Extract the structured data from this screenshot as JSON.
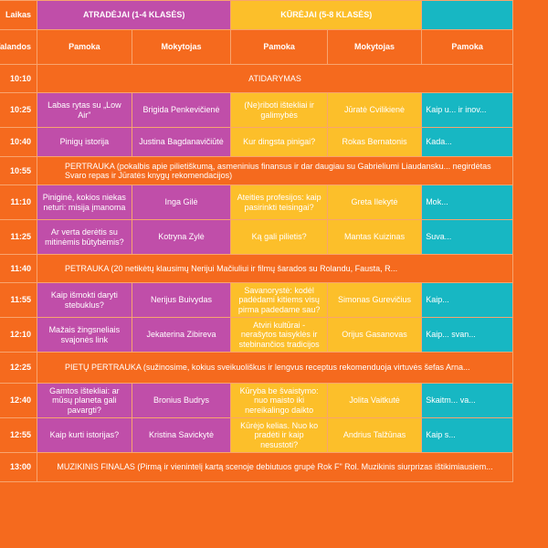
{
  "header": {
    "col0_top": "Laikas",
    "col0_sub": "Valandos",
    "group1": "ATRADĖJAI (1-4 KLASĖS)",
    "group2": "KŪRĖJAI (5-8 KLASĖS)",
    "group3": "",
    "pamoka": "Pamoka",
    "mokytojas": "Mokytojas"
  },
  "rows": [
    {
      "time": "10:10",
      "type": "break_center",
      "text": "ATIDARYMAS"
    },
    {
      "time": "10:25",
      "type": "lesson",
      "a_lesson": "Labas rytas su „Low Air\"",
      "a_teacher": "Brigida Penkevičienė",
      "k_lesson": "(Ne)riboti ištekliai ir galimybės",
      "k_teacher": "Jūratė Cvilikienė",
      "t_lesson": "Kaip u... ir inov..."
    },
    {
      "time": "10:40",
      "type": "lesson",
      "a_lesson": "Pinigų istorija",
      "a_teacher": "Justina Bagdanavičiūtė",
      "k_lesson": "Kur dingsta pinigai?",
      "k_teacher": "Rokas Bernatonis",
      "t_lesson": "Kada..."
    },
    {
      "time": "10:55",
      "type": "break",
      "text": "PERTRAUKA (pokalbis apie pilietiškumą, asmeninius finansus ir dar daugiau su Gabrieliumi Liaudansku... negirdėtas Svaro repas ir Jūratės knygų rekomendacijos)"
    },
    {
      "time": "11:10",
      "type": "lesson",
      "a_lesson": "Piniginė, kokios niekas neturi: misija įmanoma",
      "a_teacher": "Inga Gilė",
      "k_lesson": "Ateities profesijos: kaip pasirinkti teisingai?",
      "k_teacher": "Greta Ilekytė",
      "t_lesson": "Mok..."
    },
    {
      "time": "11:25",
      "type": "lesson",
      "a_lesson": "Ar verta derėtis su mitinėmis būtybėmis?",
      "a_teacher": "Kotryna Zylė",
      "k_lesson": "Ką gali pilietis?",
      "k_teacher": "Mantas Kuizinas",
      "t_lesson": "Suva..."
    },
    {
      "time": "11:40",
      "type": "break",
      "text": "PETRAUKA (20 netikėtų klausimų Nerijui Mačiuliui ir filmų šarados su Rolandu, Fausta, R..."
    },
    {
      "time": "11:55",
      "type": "lesson",
      "a_lesson": "Kaip išmokti daryti stebuklus?",
      "a_teacher": "Nerijus Buivydas",
      "k_lesson": "Savanorystė: kodėl padėdami kitiems visų pirma padedame sau?",
      "k_teacher": "Simonas Gurevičius",
      "t_lesson": "Kaip..."
    },
    {
      "time": "12:10",
      "type": "lesson",
      "a_lesson": "Mažais žingsneliais svajonės link",
      "a_teacher": "Jekaterina Zibireva",
      "k_lesson": "Atviri kultūrai - nerašytos taisyklės ir stebinančios tradicijos",
      "k_teacher": "Orijus Gasanovas",
      "t_lesson": "Kaip... svan..."
    },
    {
      "time": "12:25",
      "type": "break",
      "text": "PIETŲ PERTRAUKA (sužinosime, kokius sveikuoliškus ir lengvus receptus rekomenduoja virtuvės šefas Arna..."
    },
    {
      "time": "12:40",
      "type": "lesson",
      "a_lesson": "Gamtos ištekliai: ar mūsų planeta gali pavargti?",
      "a_teacher": "Bronius Budrys",
      "k_lesson": "Kūryba be švaistymo: nuo maisto iki nereikalingo daikto",
      "k_teacher": "Jolita Vaitkutė",
      "t_lesson": "Skaitm... va..."
    },
    {
      "time": "12:55",
      "type": "lesson",
      "a_lesson": "Kaip kurti istorijas?",
      "a_teacher": "Kristina Savickytė",
      "k_lesson": "Kūrėjo kelias. Nuo ko pradėti ir kaip nesustoti?",
      "k_teacher": "Andrius Talžūnas",
      "t_lesson": "Kaip s..."
    },
    {
      "time": "13:00",
      "type": "break_center",
      "text": "MUZIKINIS FINALAS (Pirmą ir vienintelį kartą scenoje debiutuos grupė Rok F\" Rol. Muzikinis siurprizas ištikimiausiem..."
    }
  ],
  "colors": {
    "orange": "#f56a1e",
    "purple": "#c04ea9",
    "yellow": "#fcbf2a",
    "teal": "#17b7c3"
  }
}
